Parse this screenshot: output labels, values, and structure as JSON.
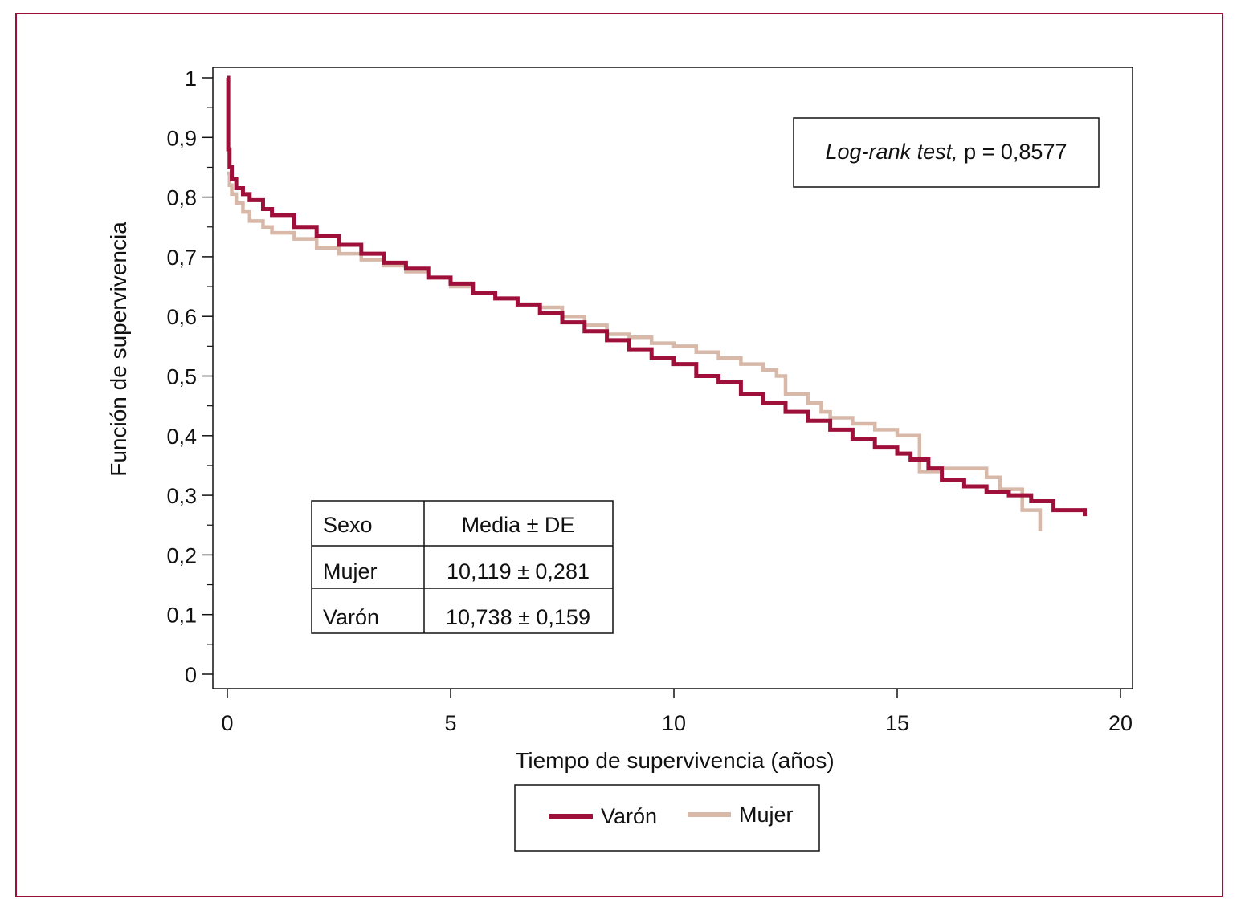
{
  "colors": {
    "frame": "#9e0f3a",
    "varon": "#9e0f3a",
    "mujer": "#d8b8a8"
  },
  "annotation": {
    "italic": "Log-rank test,",
    "text": " p = 0,8577"
  },
  "stats_table": {
    "headers": [
      "Sexo",
      "Media ± DE"
    ],
    "rows": [
      [
        "Mujer",
        "10,119 ± 0,281"
      ],
      [
        "Varón",
        "10,738 ± 0,159"
      ]
    ]
  },
  "chart_data": {
    "type": "line",
    "xlabel": "Tiempo de supervivencia (años)",
    "ylabel": "Función de supervivencia",
    "xlim": [
      0,
      20
    ],
    "ylim": [
      0,
      1
    ],
    "x_ticks": [
      0,
      5,
      10,
      15,
      20
    ],
    "x_tick_labels": [
      "0",
      "5",
      "10",
      "15",
      "20"
    ],
    "y_ticks": [
      0,
      0.1,
      0.2,
      0.3,
      0.4,
      0.5,
      0.6,
      0.7,
      0.8,
      0.9,
      1
    ],
    "y_tick_labels": [
      "0",
      "0,1",
      "0,2",
      "0,3",
      "0,4",
      "0,5",
      "0,6",
      "0,7",
      "0,8",
      "0,9",
      "1"
    ],
    "legend_position": "bottom",
    "series": [
      {
        "name": "Varón",
        "step": true,
        "x": [
          0,
          0.02,
          0.05,
          0.1,
          0.2,
          0.35,
          0.5,
          0.8,
          1.0,
          1.5,
          2.0,
          2.5,
          3.0,
          3.5,
          4.0,
          4.5,
          5.0,
          5.5,
          6.0,
          6.5,
          7.0,
          7.5,
          8.0,
          8.5,
          9.0,
          9.5,
          10.0,
          10.5,
          11.0,
          11.5,
          12.0,
          12.5,
          13.0,
          13.5,
          14.0,
          14.5,
          15.0,
          15.3,
          15.7,
          16.0,
          16.5,
          17.0,
          17.5,
          18.0,
          18.5,
          19.2
        ],
        "y": [
          1.0,
          0.88,
          0.85,
          0.83,
          0.815,
          0.805,
          0.795,
          0.78,
          0.77,
          0.75,
          0.735,
          0.72,
          0.705,
          0.69,
          0.68,
          0.665,
          0.655,
          0.64,
          0.63,
          0.62,
          0.605,
          0.59,
          0.575,
          0.56,
          0.545,
          0.53,
          0.52,
          0.5,
          0.49,
          0.47,
          0.455,
          0.44,
          0.425,
          0.41,
          0.395,
          0.38,
          0.37,
          0.36,
          0.345,
          0.325,
          0.315,
          0.305,
          0.3,
          0.29,
          0.275,
          0.265
        ]
      },
      {
        "name": "Mujer",
        "step": true,
        "x": [
          0,
          0.05,
          0.1,
          0.2,
          0.35,
          0.5,
          0.8,
          1.0,
          1.5,
          2.0,
          2.5,
          3.0,
          3.5,
          4.0,
          4.5,
          5.0,
          5.5,
          6.0,
          6.5,
          7.0,
          7.5,
          8.0,
          8.5,
          9.0,
          9.5,
          10.0,
          10.5,
          11.0,
          11.5,
          12.0,
          12.3,
          12.5,
          13.0,
          13.3,
          13.5,
          14.0,
          14.5,
          15.0,
          15.5,
          16.0,
          17.0,
          17.3,
          17.8,
          18.2
        ],
        "y": [
          0.84,
          0.82,
          0.805,
          0.79,
          0.775,
          0.76,
          0.75,
          0.74,
          0.73,
          0.715,
          0.705,
          0.695,
          0.685,
          0.675,
          0.665,
          0.65,
          0.64,
          0.63,
          0.62,
          0.615,
          0.6,
          0.585,
          0.57,
          0.565,
          0.555,
          0.55,
          0.54,
          0.53,
          0.52,
          0.51,
          0.5,
          0.47,
          0.455,
          0.44,
          0.43,
          0.42,
          0.41,
          0.4,
          0.34,
          0.345,
          0.33,
          0.31,
          0.275,
          0.24
        ]
      }
    ]
  }
}
